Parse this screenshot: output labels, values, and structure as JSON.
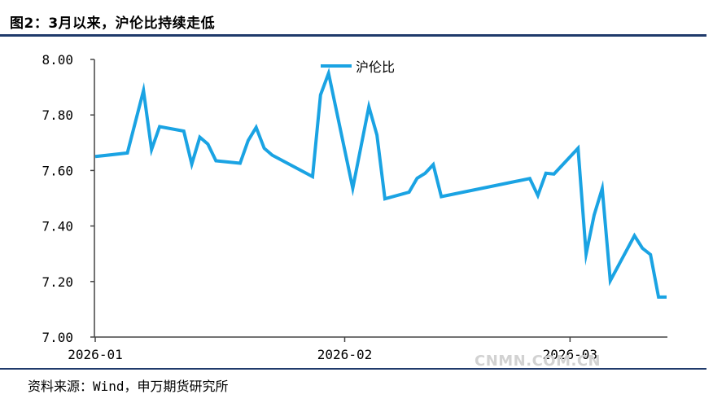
{
  "figure": {
    "title": "图2：3月以来，沪伦比持续走低",
    "source": "资料来源：Wind，申万期货研究所",
    "watermark": "CNMN.COM.CN"
  },
  "colors": {
    "line": "#1aa3e3",
    "rule": "#1f3a6b",
    "axis": "#444444"
  },
  "chart_data": {
    "type": "line",
    "title": "",
    "xlabel": "",
    "ylabel": "",
    "ylim": [
      7.0,
      8.0
    ],
    "y_ticks": [
      "7.00",
      "7.20",
      "7.40",
      "7.60",
      "7.80",
      "8.00"
    ],
    "x_ticks": [
      "2026-01",
      "2026-02",
      "2026-03"
    ],
    "grid": false,
    "legend": "top-center",
    "series": [
      {
        "name": "沪伦比",
        "x": [
          "2026-01-01",
          "2026-01-05",
          "2026-01-07",
          "2026-01-08",
          "2026-01-09",
          "2026-01-12",
          "2026-01-13",
          "2026-01-14",
          "2026-01-15",
          "2026-01-16",
          "2026-01-19",
          "2026-01-20",
          "2026-01-21",
          "2026-01-22",
          "2026-01-23",
          "2026-01-28",
          "2026-01-29",
          "2026-01-30",
          "2026-02-02",
          "2026-02-04",
          "2026-02-05",
          "2026-02-06",
          "2026-02-09",
          "2026-02-10",
          "2026-02-11",
          "2026-02-12",
          "2026-02-13",
          "2026-02-24",
          "2026-02-25",
          "2026-02-26",
          "2026-02-27",
          "2026-03-02",
          "2026-03-03",
          "2026-03-04",
          "2026-03-05",
          "2026-03-06",
          "2026-03-09",
          "2026-03-10",
          "2026-03-11",
          "2026-03-12",
          "2026-03-13"
        ],
        "values": [
          7.65,
          7.663,
          7.888,
          7.675,
          7.758,
          7.742,
          7.623,
          7.72,
          7.695,
          7.635,
          7.626,
          7.708,
          7.755,
          7.68,
          7.655,
          7.578,
          7.872,
          7.95,
          7.536,
          7.83,
          7.728,
          7.498,
          7.522,
          7.572,
          7.59,
          7.621,
          7.506,
          7.571,
          7.51,
          7.59,
          7.587,
          7.68,
          7.299,
          7.44,
          7.535,
          7.203,
          7.365,
          7.32,
          7.297,
          7.144,
          7.144
        ]
      }
    ]
  }
}
